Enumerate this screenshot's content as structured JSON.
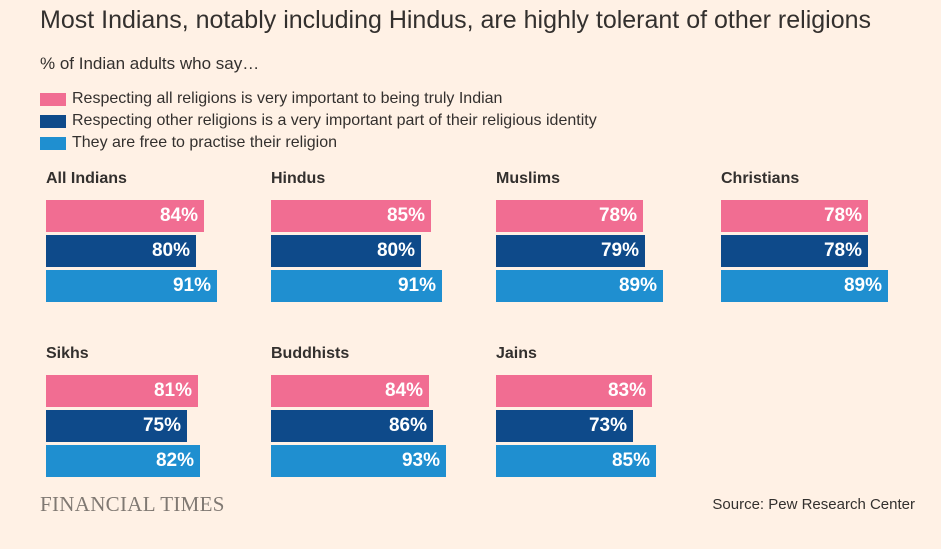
{
  "header": {
    "title": "Most Indians, notably including Hindus, are highly tolerant of other religions",
    "subtitle": "% of Indian adults who say…"
  },
  "colors": {
    "respect_all": "#f16d92",
    "respect_other": "#0e4a8a",
    "free_to_practise": "#1f8fd0",
    "background": "#fff1e5"
  },
  "chart_data": {
    "type": "bar",
    "orientation": "horizontal",
    "layout": "small-multiples",
    "title": "Most Indians, notably including Hindus, are highly tolerant of other religions",
    "subtitle": "% of Indian adults who say…",
    "unit": "%",
    "xlim": [
      0,
      100
    ],
    "grid": false,
    "legend_position": "top-left",
    "series": [
      {
        "name": "Respecting all religions is very important to being truly Indian",
        "color": "#f16d92"
      },
      {
        "name": "Respecting other religions is a very important part of their religious identity",
        "color": "#0e4a8a"
      },
      {
        "name": "They are free to practise their religion",
        "color": "#1f8fd0"
      }
    ],
    "panels": [
      {
        "group": "All Indians",
        "values": [
          84,
          80,
          91
        ]
      },
      {
        "group": "Hindus",
        "values": [
          85,
          80,
          91
        ]
      },
      {
        "group": "Muslims",
        "values": [
          78,
          79,
          89
        ]
      },
      {
        "group": "Christians",
        "values": [
          78,
          78,
          89
        ]
      },
      {
        "group": "Sikhs",
        "values": [
          81,
          75,
          82
        ]
      },
      {
        "group": "Buddhists",
        "values": [
          84,
          86,
          93
        ]
      },
      {
        "group": "Jains",
        "values": [
          83,
          73,
          85
        ]
      }
    ]
  },
  "footer": {
    "logo": "FINANCIAL TIMES",
    "source": "Source: Pew Research Center"
  }
}
